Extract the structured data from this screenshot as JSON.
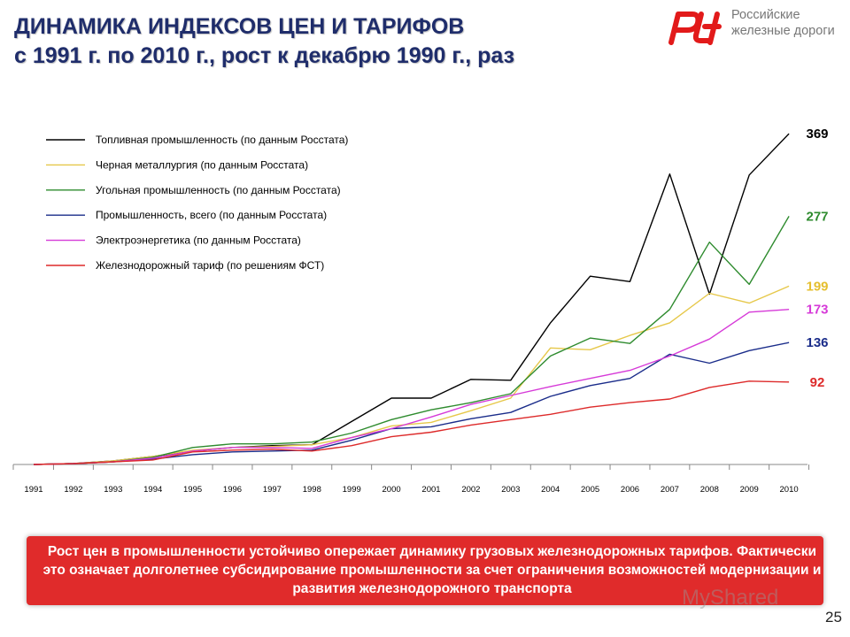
{
  "header": {
    "title_line1": "ДИНАМИКА ИНДЕКСОВ ЦЕН И ТАРИФОВ",
    "title_line2": "с 1991 г. по 2010 г., рост к декабрю 1990 г., раз"
  },
  "logo": {
    "mark": "РЖД",
    "line1": "Российские",
    "line2": "железные дороги",
    "color": "#e21a1a"
  },
  "chart_data": {
    "type": "line",
    "x": [
      1991,
      1992,
      1993,
      1994,
      1995,
      1996,
      1997,
      1998,
      1999,
      2000,
      2001,
      2002,
      2003,
      2004,
      2005,
      2006,
      2007,
      2008,
      2009,
      2010
    ],
    "ylim": [
      0,
      380
    ],
    "grid": false,
    "legend_position": "top-left",
    "series": [
      {
        "name": "Топливная промышленность (по данным Росстата)",
        "color": "#000000",
        "end_label": "369",
        "values": [
          0,
          1,
          4,
          9,
          15,
          19,
          21,
          22,
          48,
          74,
          74,
          95,
          94,
          158,
          210,
          204,
          324,
          190,
          323,
          369
        ]
      },
      {
        "name": "Черная металлургия (по данным Росстата)",
        "color": "#e6c84a",
        "end_label": "199",
        "values": [
          0,
          1,
          4,
          9,
          16,
          19,
          20,
          22,
          30,
          43,
          47,
          60,
          74,
          130,
          128,
          144,
          158,
          191,
          180,
          199
        ]
      },
      {
        "name": "Угольная промышленность (по данным Росстата)",
        "color": "#2e8b2e",
        "end_label": "277",
        "values": [
          0,
          1,
          3,
          8,
          19,
          23,
          23,
          25,
          35,
          50,
          61,
          69,
          79,
          121,
          141,
          135,
          173,
          248,
          201,
          277
        ]
      },
      {
        "name": "Промышленность, всего (по данным Росстата)",
        "color": "#1a2c8a",
        "end_label": "136",
        "values": [
          0,
          1,
          3,
          6,
          11,
          14,
          15,
          16,
          27,
          40,
          42,
          51,
          58,
          76,
          88,
          96,
          123,
          113,
          127,
          136
        ]
      },
      {
        "name": "Электроэнергетика (по данным Росстата)",
        "color": "#d63ad8",
        "end_label": "173",
        "values": [
          0,
          1,
          3,
          7,
          15,
          19,
          19,
          18,
          30,
          40,
          53,
          67,
          77,
          87,
          96,
          105,
          121,
          140,
          170,
          173
        ]
      },
      {
        "name": "Железнодорожный тариф (по решениям ФСТ)",
        "color": "#dd2a2a",
        "end_label": "92",
        "values": [
          0,
          1,
          3,
          5,
          14,
          16,
          17,
          15,
          21,
          31,
          36,
          44,
          50,
          56,
          64,
          69,
          73,
          86,
          93,
          92
        ]
      }
    ]
  },
  "callout": {
    "text": "Рост цен в промышленности устойчиво опережает динамику грузовых железнодорожных тарифов. Фактически это означает долголетнее субсидирование промышленности за счет ограничения возможностей модернизации и развития железнодорожного транспорта"
  },
  "watermark": {
    "text": "MyShared"
  },
  "page_number": "25"
}
